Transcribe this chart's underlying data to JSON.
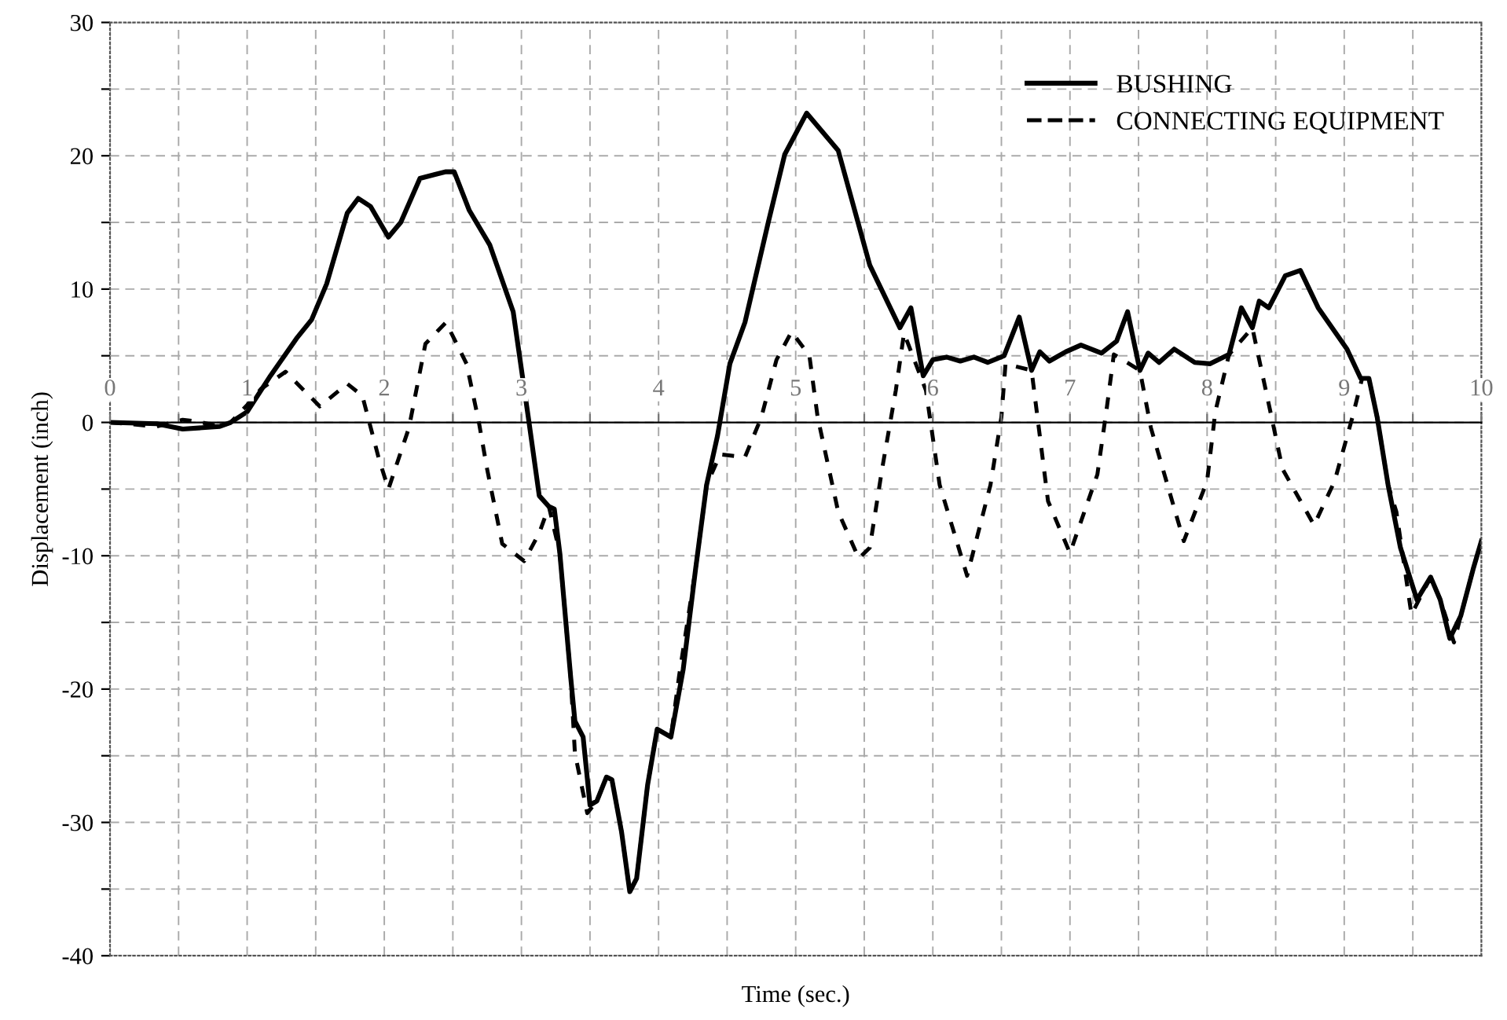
{
  "chart_data": {
    "type": "line",
    "xlabel": "Time (sec.)",
    "ylabel": "Displacement (inch)",
    "xlim": [
      0,
      10
    ],
    "ylim": [
      -40,
      30
    ],
    "xticks": [
      0,
      {
        "value": 0.5,
        "label": null
      },
      1,
      {
        "value": 1.5,
        "label": null
      },
      2,
      {
        "value": 2.5,
        "label": null
      },
      3,
      {
        "value": 3.5,
        "label": null
      },
      4,
      {
        "value": 4.5,
        "label": null
      },
      5,
      {
        "value": 5.5,
        "label": null
      },
      6,
      {
        "value": 6.5,
        "label": null
      },
      7,
      {
        "value": 7.5,
        "label": null
      },
      8,
      {
        "value": 8.5,
        "label": null
      },
      9,
      {
        "value": 9.5,
        "label": null
      },
      10
    ],
    "yticks": [
      -40,
      {
        "value": -35,
        "label": null
      },
      -30,
      {
        "value": -25,
        "label": null
      },
      -20,
      {
        "value": -15,
        "label": null
      },
      -10,
      {
        "value": -5,
        "label": null
      },
      0,
      {
        "value": 5,
        "label": null
      },
      10,
      {
        "value": 15,
        "label": null
      },
      20,
      {
        "value": 25,
        "label": null
      },
      30
    ],
    "grid": true,
    "legend": "top right",
    "marker": "none",
    "series": [
      {
        "name": "BUSHING",
        "color": "#000000",
        "line_style": "solid",
        "x": [
          0,
          0.34,
          0.53,
          0.8,
          0.88,
          1.0,
          1.17,
          1.36,
          1.47,
          1.58,
          1.73,
          1.81,
          1.9,
          2.03,
          2.12,
          2.26,
          2.37,
          2.45,
          2.51,
          2.62,
          2.77,
          2.94,
          3.05,
          3.13,
          3.2,
          3.24,
          3.28,
          3.36,
          3.39,
          3.45,
          3.5,
          3.55,
          3.62,
          3.66,
          3.73,
          3.79,
          3.84,
          3.92,
          3.99,
          4.09,
          4.18,
          4.27,
          4.35,
          4.43,
          4.52,
          4.63,
          4.8,
          4.92,
          5.08,
          5.31,
          5.54,
          5.76,
          5.84,
          5.93,
          6.0,
          6.1,
          6.2,
          6.3,
          6.4,
          6.52,
          6.63,
          6.72,
          6.78,
          6.85,
          6.97,
          7.08,
          7.23,
          7.34,
          7.42,
          7.51,
          7.57,
          7.65,
          7.76,
          7.91,
          8.02,
          8.16,
          8.25,
          8.33,
          8.38,
          8.45,
          8.51,
          8.57,
          8.68,
          8.81,
          9.02,
          9.12,
          9.18,
          9.24,
          9.32,
          9.41,
          9.53,
          9.63,
          9.7,
          9.77,
          9.85,
          9.94,
          10.0
        ],
        "values": [
          0,
          -0.1,
          -0.5,
          -0.3,
          0,
          0.8,
          3.5,
          6.3,
          7.7,
          10.4,
          15.7,
          16.8,
          16.2,
          13.9,
          15,
          18.3,
          18.6,
          18.8,
          18.8,
          15.9,
          13.3,
          8.3,
          0.4,
          -5.5,
          -6.3,
          -6.5,
          -9.8,
          -19.2,
          -22.4,
          -23.6,
          -28.7,
          -28.4,
          -26.6,
          -26.8,
          -30.7,
          -35.2,
          -34.2,
          -27.2,
          -23,
          -23.6,
          -18.5,
          -11,
          -4.7,
          -1,
          4.4,
          7.5,
          15,
          20.1,
          23.2,
          20.4,
          11.8,
          7.1,
          8.6,
          3.5,
          4.7,
          4.9,
          4.6,
          4.9,
          4.5,
          5,
          7.9,
          3.9,
          5.3,
          4.6,
          5.3,
          5.8,
          5.2,
          6.1,
          8.3,
          3.9,
          5.2,
          4.5,
          5.5,
          4.5,
          4.4,
          5.1,
          8.6,
          7.1,
          9.1,
          8.6,
          9.8,
          11,
          11.4,
          8.6,
          5.5,
          3.3,
          3.3,
          0.4,
          -4.7,
          -9.4,
          -13.3,
          -11.6,
          -13.3,
          -16.2,
          -14.5,
          -11,
          -8.9
        ]
      },
      {
        "name": "CONNECTING EQUIPMENT",
        "color": "#000000",
        "line_style": "dashed",
        "x": [
          0,
          0.34,
          0.53,
          0.62,
          0.8,
          0.88,
          1.0,
          1.1,
          1.28,
          1.53,
          1.73,
          1.84,
          1.96,
          2.03,
          2.18,
          2.3,
          2.45,
          2.6,
          2.69,
          2.75,
          2.86,
          3.02,
          3.13,
          3.2,
          3.28,
          3.36,
          3.39,
          3.48,
          3.55,
          3.62,
          3.66,
          3.73,
          3.79,
          3.84,
          3.92,
          3.99,
          4.09,
          4.15,
          4.27,
          4.35,
          4.45,
          4.63,
          4.75,
          4.86,
          4.97,
          5.1,
          5.16,
          5.31,
          5.46,
          5.54,
          5.63,
          5.73,
          5.79,
          5.95,
          6.05,
          6.25,
          6.42,
          6.5,
          6.53,
          6.72,
          6.84,
          7.0,
          7.2,
          7.27,
          7.32,
          7.51,
          7.59,
          7.83,
          8.0,
          8.06,
          8.16,
          8.33,
          8.47,
          8.55,
          8.78,
          8.93,
          9.06,
          9.13,
          9.18,
          9.24,
          9.32,
          9.38,
          9.49,
          9.63,
          9.7,
          9.8,
          9.85,
          9.94,
          10.0
        ],
        "values": [
          0,
          -0.3,
          0.2,
          0.1,
          -0.3,
          0,
          1.3,
          2.5,
          3.8,
          1.2,
          2.9,
          2,
          -2.7,
          -5,
          -0.4,
          5.9,
          7.5,
          4.4,
          0,
          -3.5,
          -9.1,
          -10.4,
          -8.3,
          -6.3,
          -9.8,
          -19.2,
          -24.8,
          -29.3,
          -28.4,
          -26.6,
          -26.8,
          -30.7,
          -35.2,
          -34.2,
          -27.2,
          -23,
          -23.6,
          -19,
          -11,
          -4.7,
          -2.4,
          -2.6,
          0.4,
          4.7,
          6.8,
          5,
          0.4,
          -6.7,
          -10.2,
          -9.4,
          -3.5,
          2.4,
          6.7,
          2.4,
          -4.7,
          -11.5,
          -4.7,
          0.4,
          4.4,
          3.9,
          -5.9,
          -9.8,
          -3.9,
          1.2,
          5.1,
          3.9,
          -0.4,
          -8.9,
          -4.4,
          0.8,
          5.1,
          7.1,
          0.4,
          -3.5,
          -7.7,
          -4.4,
          0.4,
          3.3,
          3.3,
          0.4,
          -4.7,
          -6.7,
          -14.4,
          -11.6,
          -13.3,
          -16.5,
          -14.5,
          -11,
          -8.9
        ]
      }
    ]
  }
}
